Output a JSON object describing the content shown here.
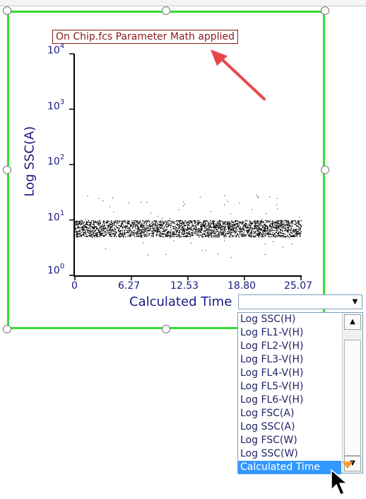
{
  "plot": {
    "title": "On Chip.fcs Parameter Math applied",
    "y_axis_label": "Log SSC(A)",
    "x_axis_label": "Calculated Time",
    "y_ticks": [
      {
        "base": "10",
        "exp": "4"
      },
      {
        "base": "10",
        "exp": "3"
      },
      {
        "base": "10",
        "exp": "2"
      },
      {
        "base": "10",
        "exp": "1"
      },
      {
        "base": "10",
        "exp": "0"
      }
    ],
    "x_ticks": [
      "0",
      "6.27",
      "12.53",
      "18.80",
      "25.07"
    ]
  },
  "chart_data": {
    "type": "scatter",
    "title": "On Chip.fcs Parameter Math applied",
    "xlabel": "Calculated Time",
    "ylabel": "Log SSC(A)",
    "xlim": [
      0,
      25.07
    ],
    "ylim": [
      1,
      10000
    ],
    "y_scale": "log",
    "x_ticks": [
      "0",
      "6.27",
      "12.53",
      "18.80",
      "25.07"
    ],
    "y_ticks": [
      "10^0",
      "10^1",
      "10^2",
      "10^3",
      "10^4"
    ],
    "series": [
      {
        "x_range": [
          0,
          25.07
        ],
        "y_range": [
          5,
          10
        ],
        "density": "dense"
      },
      {
        "x_range": [
          0,
          25.07
        ],
        "y_range": [
          2,
          30
        ],
        "density": "sparse"
      }
    ],
    "colors": {
      "points": "#000000",
      "axis_text": "#1a1a80"
    }
  },
  "dropdown": {
    "value": "",
    "button_glyph": "▼",
    "options": [
      "Log SSC(H)",
      "Log FL1-V(H)",
      "Log FL2-V(H)",
      "Log FL3-V(H)",
      "Log FL4-V(H)",
      "Log FL5-V(H)",
      "Log FL6-V(H)",
      "Log FSC(A)",
      "Log SSC(A)",
      "Log FSC(W)",
      "Log SSC(W)",
      "Calculated Time"
    ],
    "selected": "Calculated Time",
    "scroll_up_glyph": "▲",
    "scroll_down_glyph": "▼"
  },
  "colors": {
    "selection_border": "#33dd33",
    "title_border": "#8b1a1a",
    "annotation_arrow": "#e8474a",
    "list_selected": "#3399ff"
  }
}
